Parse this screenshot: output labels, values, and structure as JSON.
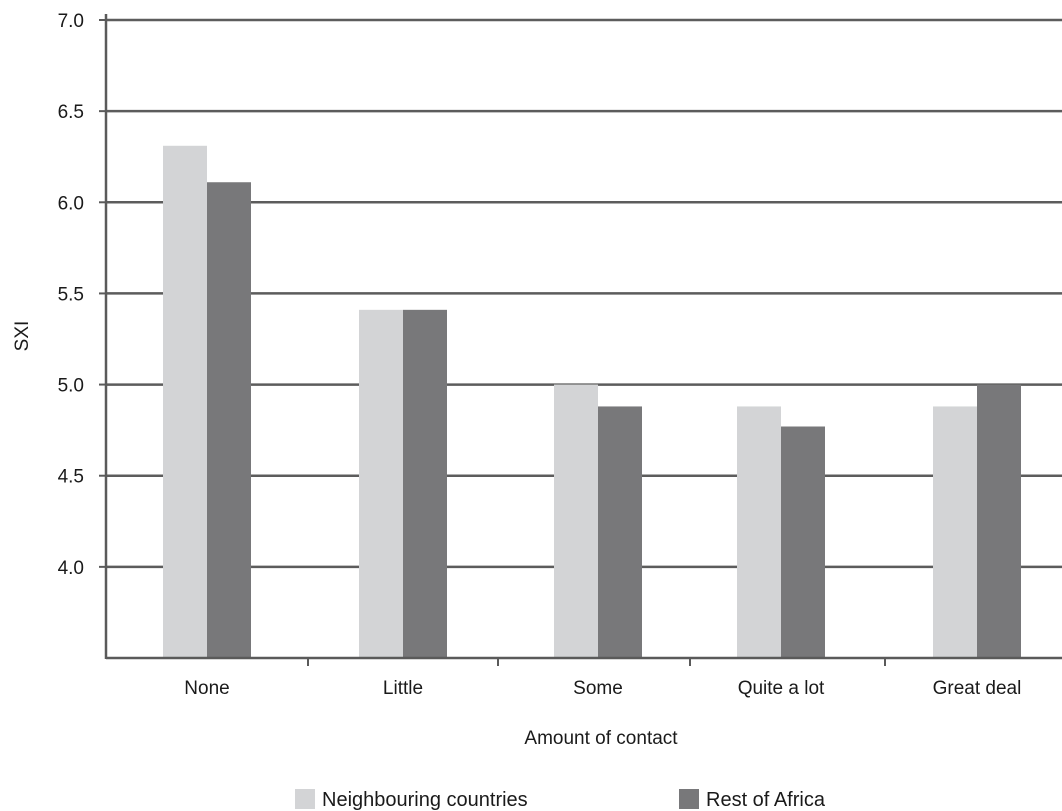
{
  "chart_data": {
    "type": "bar",
    "title": "",
    "xlabel": "Amount of contact",
    "ylabel": "SXI",
    "ylim": [
      3.5,
      7.0
    ],
    "yticks": [
      "7.0",
      "6.5",
      "6.0",
      "5.5",
      "5.0",
      "4.5",
      "4.0"
    ],
    "categories": [
      "None",
      "Little",
      "Some",
      "Quite a lot",
      "Great deal"
    ],
    "series": [
      {
        "name": "Neighbouring countries",
        "color": "#d3d4d6",
        "values": [
          6.31,
          5.41,
          5.0,
          4.88,
          4.88
        ]
      },
      {
        "name": "Rest of Africa",
        "color": "#78787a",
        "values": [
          6.11,
          5.41,
          4.88,
          4.77,
          5.0
        ]
      }
    ],
    "grid": true,
    "legend": "bottom"
  }
}
